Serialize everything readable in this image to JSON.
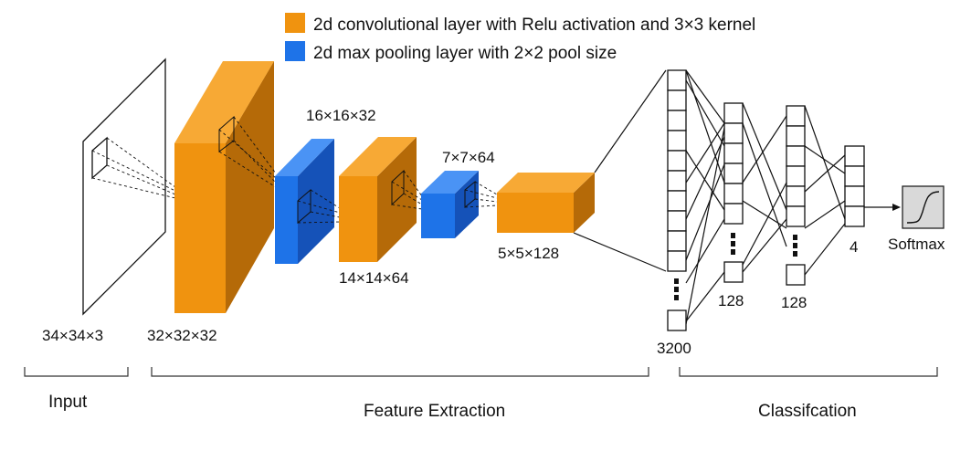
{
  "legend": {
    "conv_label": "2d convolutional layer with Relu activation and 3×3 kernel",
    "pool_label": "2d max pooling layer with 2×2 pool size"
  },
  "colors": {
    "conv_front": "#F0930F",
    "conv_side": "#B56A08",
    "conv_top": "#F7A935",
    "pool_front": "#1E73E8",
    "pool_side": "#1552B8",
    "pool_top": "#4A93F5"
  },
  "labels": {
    "input_dims": "34×34×3",
    "conv1_dims": "32×32×32",
    "pool1_dims": "16×16×32",
    "conv2_dims": "14×14×64",
    "pool2_dims": "7×7×64",
    "conv3_dims": "5×5×128",
    "flatten_dims": "3200",
    "dense1_dims": "128",
    "dense2_dims": "128",
    "output_dims": "4",
    "softmax": "Softmax"
  },
  "sections": {
    "input": "Input",
    "feature_extraction": "Feature Extraction",
    "classification": "Classifcation"
  }
}
